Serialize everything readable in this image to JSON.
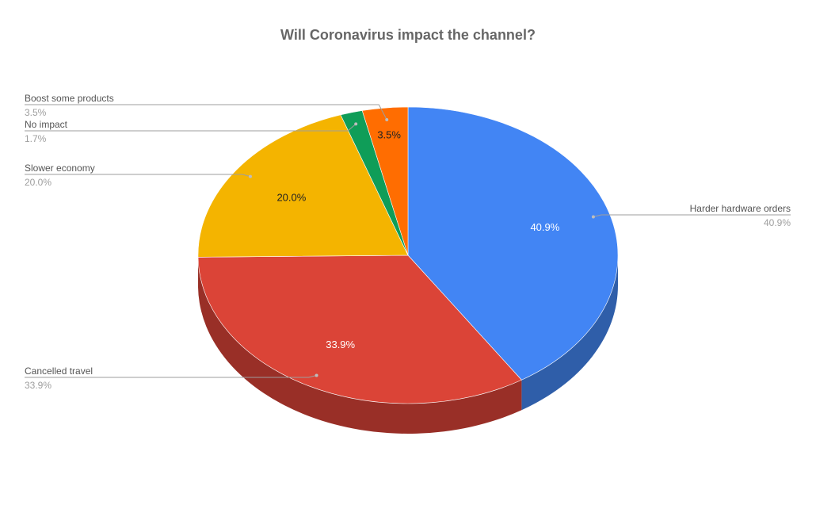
{
  "chart_data": {
    "type": "pie",
    "style": "3d",
    "title": "Will Coronavirus impact the channel?",
    "slices": [
      {
        "name": "Harder hardware orders",
        "value": 40.9,
        "label": "40.9%",
        "color": "#4285f4",
        "side_color": "#2f5ea9",
        "label_color": "#ffffff"
      },
      {
        "name": "Cancelled travel",
        "value": 33.9,
        "label": "33.9%",
        "color": "#db4437",
        "side_color": "#992f27",
        "label_color": "#ffffff"
      },
      {
        "name": "Slower economy",
        "value": 20.0,
        "label": "20.0%",
        "color": "#f4b400",
        "side_color": "#ab7e00",
        "label_color": "#222222"
      },
      {
        "name": "No impact",
        "value": 1.7,
        "label": "1.7%",
        "color": "#0f9d58",
        "side_color": "#0a6e3e",
        "label_color": "#ffffff"
      },
      {
        "name": "Boost some products",
        "value": 3.5,
        "label": "3.5%",
        "color": "#ff6d01",
        "side_color": "#b34c01",
        "label_color": "#222222"
      }
    ],
    "legend": "labels with leader lines"
  }
}
